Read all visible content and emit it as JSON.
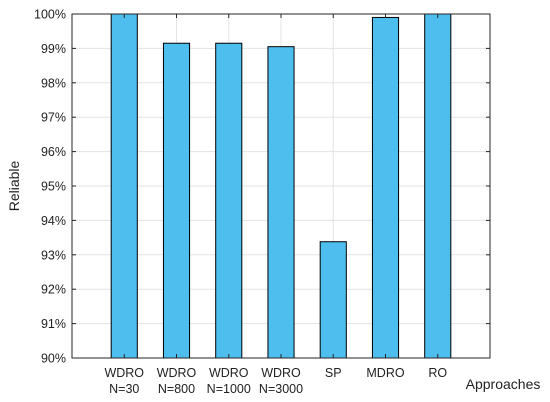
{
  "chart_data": {
    "type": "bar",
    "categories": [
      [
        "WDRO",
        "N=30"
      ],
      [
        "WDRO",
        "N=800"
      ],
      [
        "WDRO",
        "N=1000"
      ],
      [
        "WDRO",
        "N=3000"
      ],
      [
        "SP"
      ],
      [
        "MDRO"
      ],
      [
        "RO"
      ]
    ],
    "values": [
      100.0,
      99.15,
      99.15,
      99.05,
      93.38,
      99.9,
      100.0
    ],
    "ylabel": "Reliable",
    "xlabel": "Approaches",
    "ylim": [
      90,
      100
    ],
    "yticks": [
      90,
      91,
      92,
      93,
      94,
      95,
      96,
      97,
      98,
      99,
      100
    ],
    "ytick_labels": [
      "90%",
      "91%",
      "92%",
      "93%",
      "94%",
      "95%",
      "96%",
      "97%",
      "98%",
      "99%",
      "100%"
    ],
    "grid": true,
    "bar_color": "#4dbeee",
    "edge_color": "#000000"
  }
}
